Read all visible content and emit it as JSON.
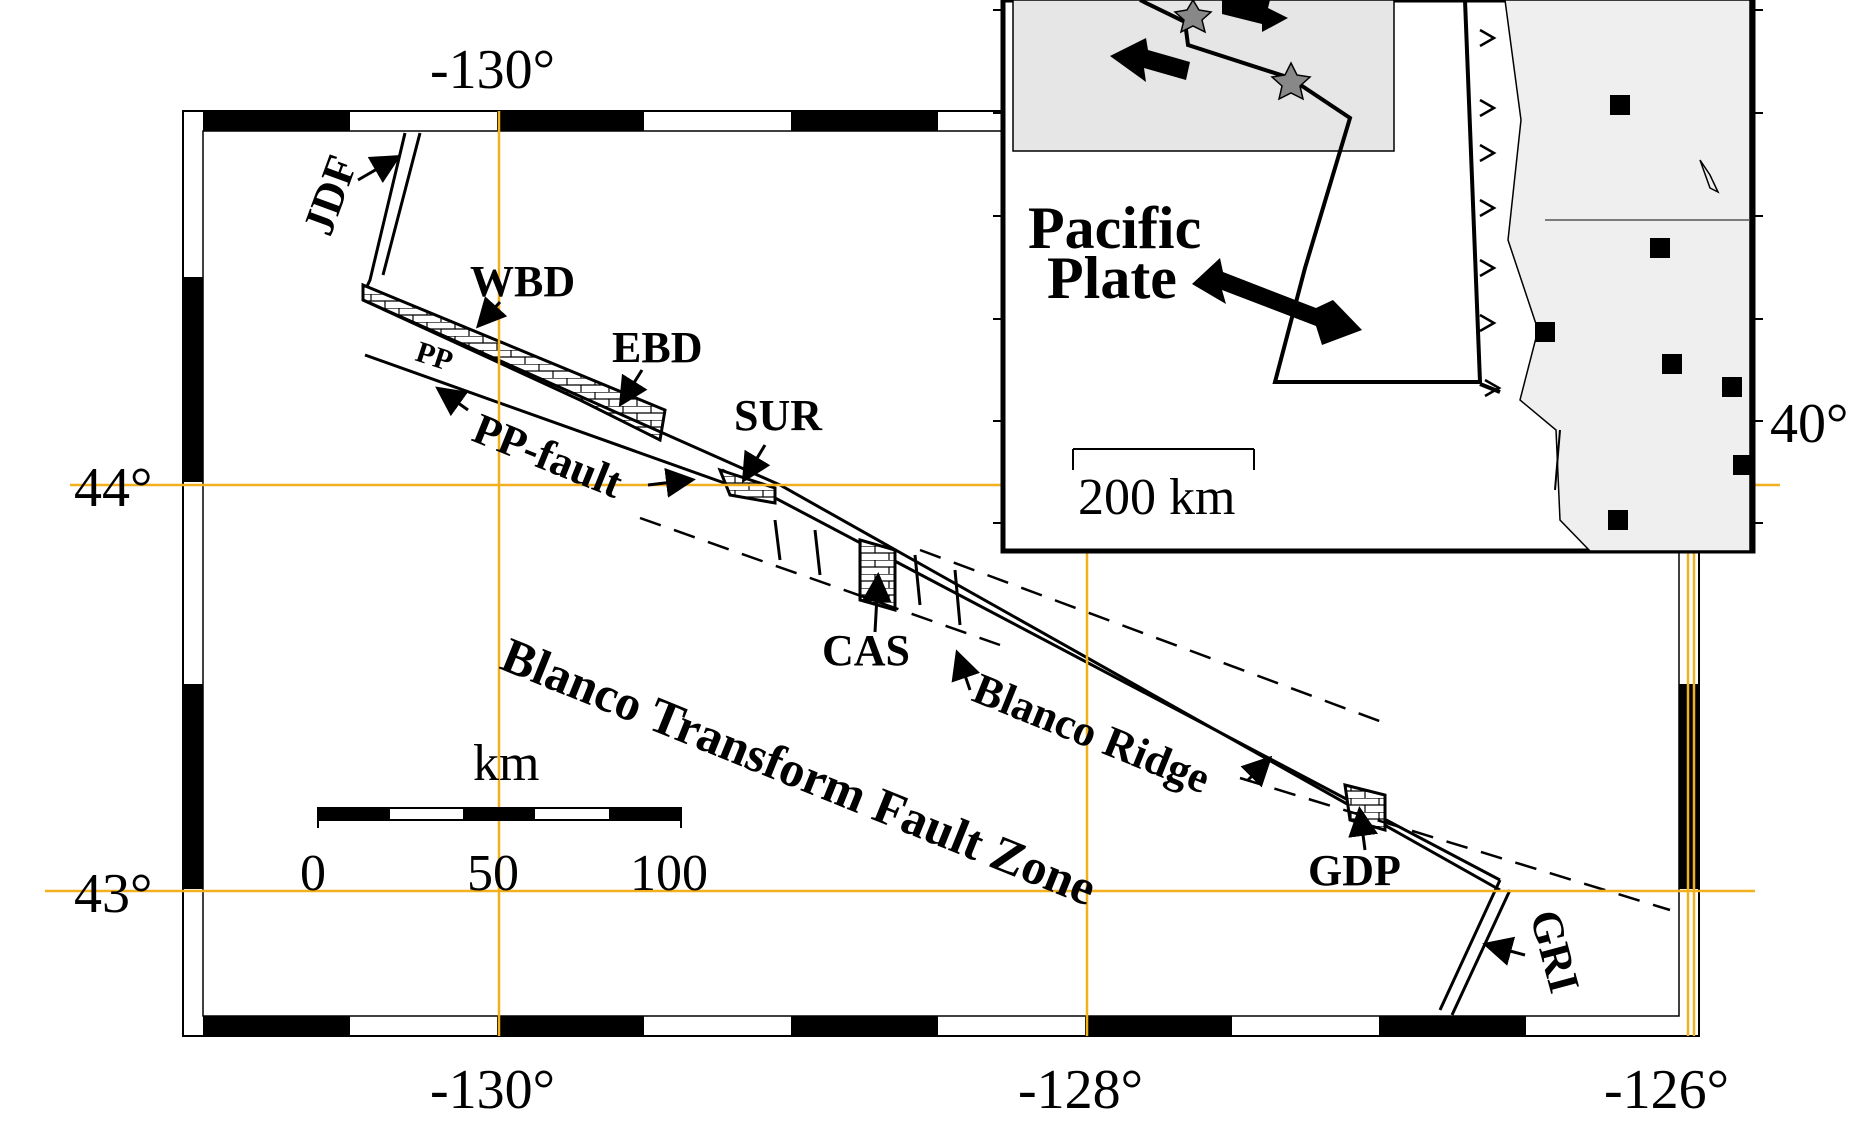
{
  "axes": {
    "top_lon_labels": [
      "-130°"
    ],
    "bottom_lon_labels": [
      "-130°",
      "-128°",
      "-126°"
    ],
    "lat_labels": [
      "44°",
      "43°"
    ],
    "inset_lat_label": "40°"
  },
  "features": {
    "jdf": "JDF",
    "wbd": "WBD",
    "ebd": "EBD",
    "pp": "PP",
    "pp_fault": "PP-fault",
    "sur": "SUR",
    "cas": "CAS",
    "blanco_ridge": "Blanco Ridge",
    "blanco_zone": "Blanco Transform Fault Zone",
    "gdp": "GDP",
    "gri": "GRI"
  },
  "scale_bar": {
    "unit": "km",
    "labels": [
      "0",
      "50",
      "100"
    ]
  },
  "inset": {
    "plate_line1": "Pacific",
    "plate_line2": "Plate",
    "scale_label": "200 km"
  },
  "colors": {
    "gridline": "#f2b01e",
    "inset_land": "#efefef",
    "inset_box": "#e6e6e6",
    "star": "#888888",
    "ink": "#000000"
  }
}
